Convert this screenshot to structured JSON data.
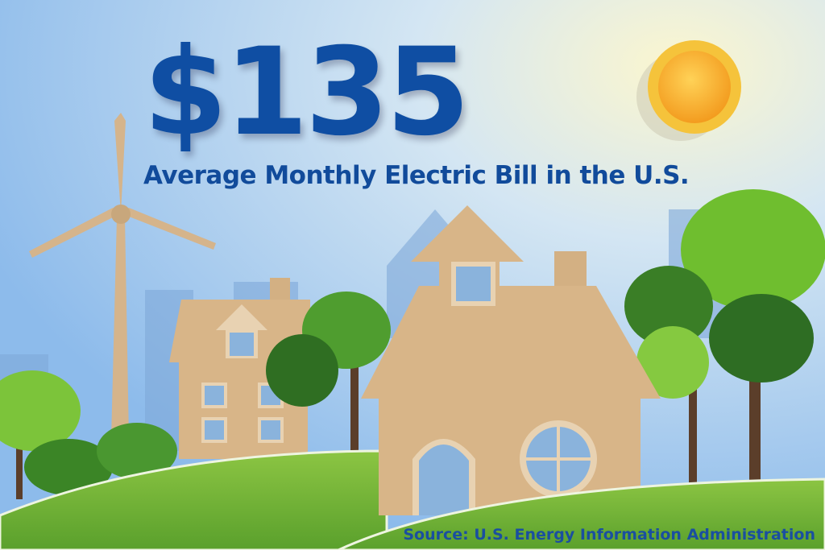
{
  "headline": {
    "amount": "$135",
    "subtitle": "Average Monthly Electric Bill in the U.S."
  },
  "source": "Source: U.S. Energy Information Administration",
  "colors": {
    "text": "#0f4ea3",
    "sky": "#9fc6ee",
    "grass": "#7dbb3c",
    "house": "#d8b588",
    "sun": "#f7b733"
  }
}
